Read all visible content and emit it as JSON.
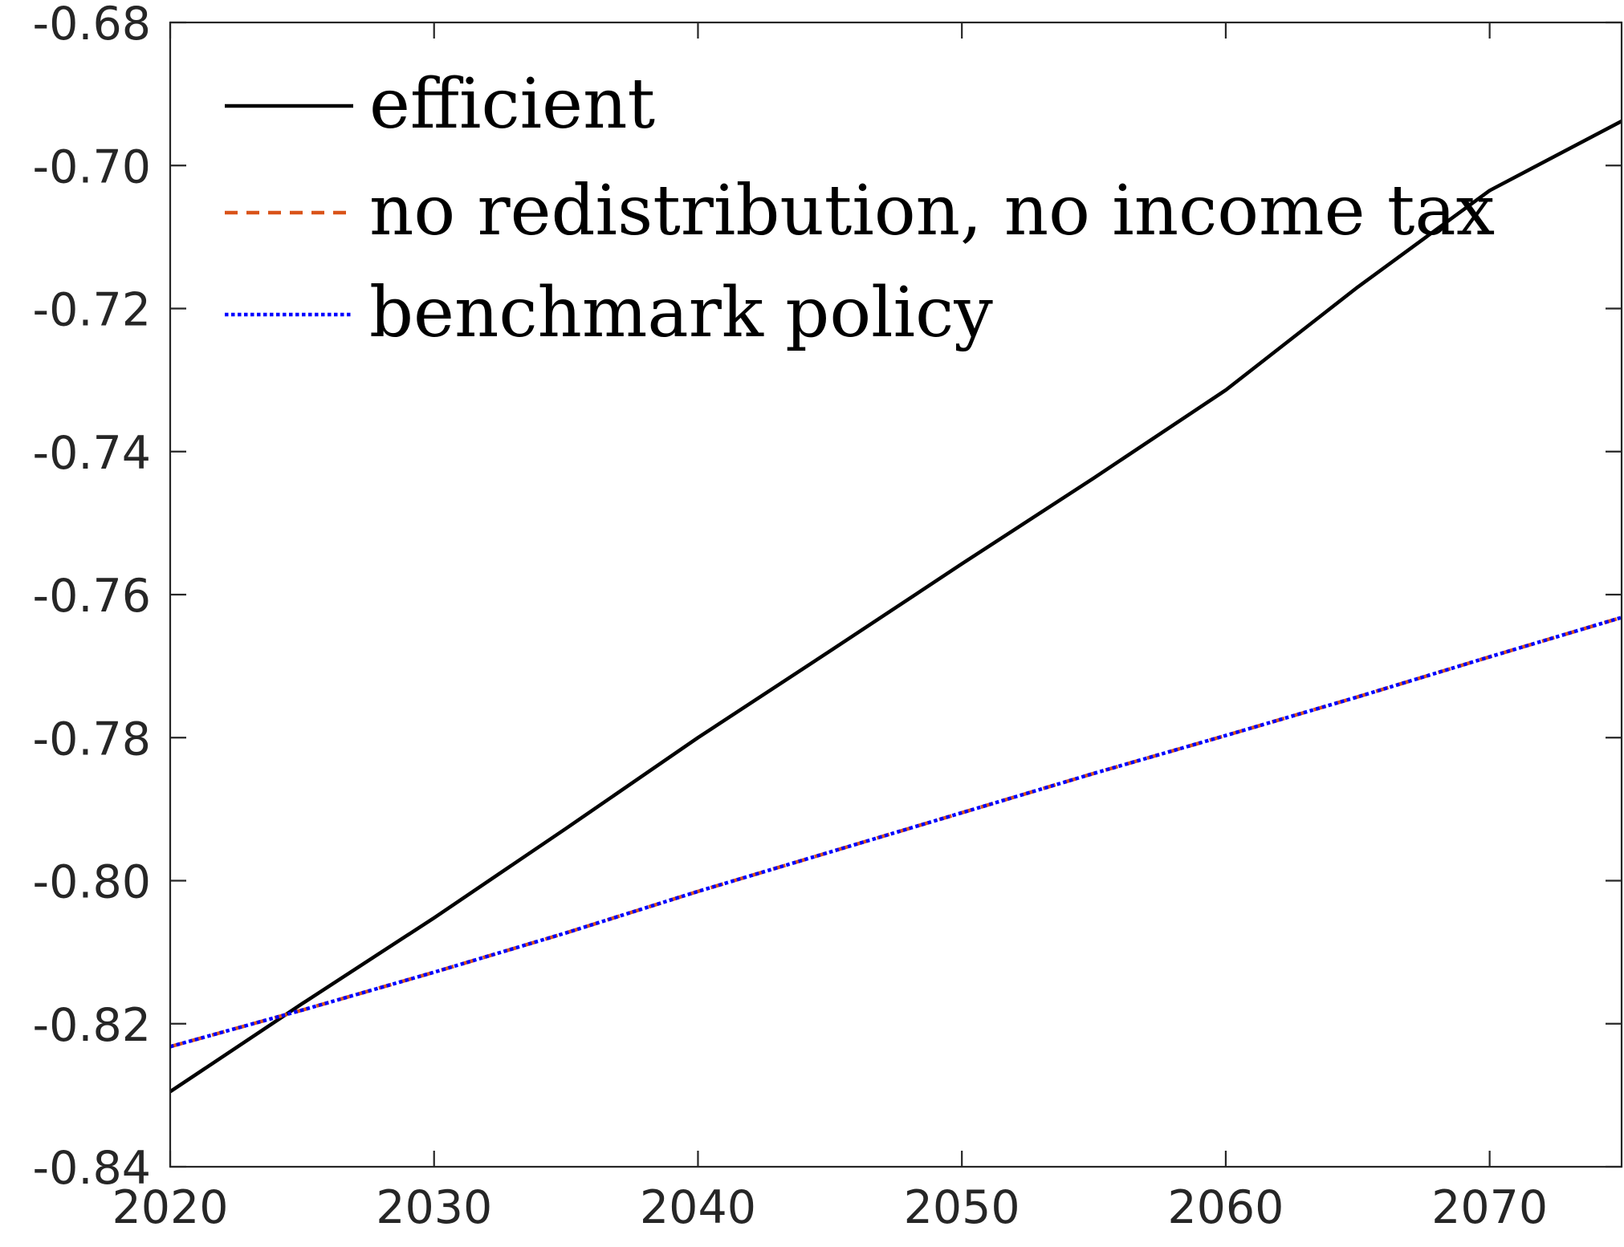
{
  "chart_data": {
    "type": "line",
    "title": "",
    "xlabel": "",
    "ylabel": "",
    "xlim": [
      2020,
      2075
    ],
    "ylim": [
      -0.84,
      -0.68
    ],
    "x_ticks": [
      2020,
      2030,
      2040,
      2050,
      2060,
      2070
    ],
    "x_tick_labels": [
      "2020",
      "2030",
      "2040",
      "2050",
      "2060",
      "2070"
    ],
    "y_ticks": [
      -0.68,
      -0.7,
      -0.72,
      -0.74,
      -0.76,
      -0.78,
      -0.8,
      -0.82,
      -0.84
    ],
    "y_tick_labels": [
      "-0.68",
      "-0.70",
      "-0.72",
      "-0.74",
      "-0.76",
      "-0.78",
      "-0.80",
      "-0.82",
      "-0.84"
    ],
    "grid": false,
    "legend_position": "top-left",
    "series": [
      {
        "name": "efficient",
        "color": "#000000",
        "style": "solid",
        "x": [
          2020,
          2025,
          2030,
          2035,
          2040,
          2045,
          2050,
          2055,
          2060,
          2065,
          2070,
          2075
        ],
        "y": [
          -0.8295,
          -0.8172,
          -0.8052,
          -0.7927,
          -0.78,
          -0.7679,
          -0.7557,
          -0.7437,
          -0.7314,
          -0.717,
          -0.7035,
          -0.6938
        ]
      },
      {
        "name": "no redistribution, no income tax",
        "color": "#d95319",
        "style": "dashed",
        "x": [
          2020,
          2025,
          2030,
          2035,
          2040,
          2045,
          2050,
          2055,
          2060,
          2065,
          2070,
          2075
        ],
        "y": [
          -0.8232,
          -0.8181,
          -0.8128,
          -0.8073,
          -0.8015,
          -0.796,
          -0.7905,
          -0.785,
          -0.7797,
          -0.7743,
          -0.7687,
          -0.7632
        ]
      },
      {
        "name": "benchmark policy",
        "color": "#0000ff",
        "style": "dotted",
        "x": [
          2020,
          2025,
          2030,
          2035,
          2040,
          2045,
          2050,
          2055,
          2060,
          2065,
          2070,
          2075
        ],
        "y": [
          -0.8232,
          -0.8181,
          -0.8128,
          -0.8073,
          -0.8015,
          -0.796,
          -0.7905,
          -0.785,
          -0.7797,
          -0.7743,
          -0.7687,
          -0.7632
        ]
      }
    ]
  }
}
